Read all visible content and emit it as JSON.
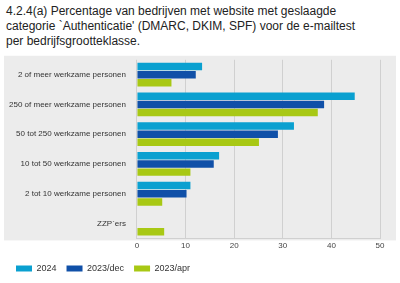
{
  "chart_data": {
    "type": "bar",
    "orientation": "horizontal",
    "title": "4.2.4(a) Percentage van bedrijven met website met geslaagde categorie `Authenticatie' (DMARC, DKIM, SPF) voor de e-mailtest per bedrijfsgrootteklasse.",
    "categories": [
      "2 of meer werkzame personen",
      "250 of meer werkzame personen",
      "50 tot 250 werkzame personen",
      "10 tot 50 werkzame personen",
      "2 tot 10 werkzame personen",
      "ZZP`ers"
    ],
    "series": [
      {
        "name": "2024",
        "color": "#0aa0d0",
        "values": [
          13.4,
          44.8,
          32.3,
          16.9,
          11.0,
          null
        ]
      },
      {
        "name": "2023/dec",
        "color": "#1050a8",
        "values": [
          12.1,
          38.5,
          29.0,
          15.8,
          10.2,
          null
        ]
      },
      {
        "name": "2023/apr",
        "color": "#a8c814",
        "values": [
          7.1,
          37.2,
          25.1,
          11.0,
          5.2,
          5.6
        ]
      }
    ],
    "xlim": [
      0,
      50
    ],
    "xticks": [
      0,
      10,
      20,
      30,
      40,
      50
    ],
    "grid": true,
    "legend": "bottom"
  }
}
